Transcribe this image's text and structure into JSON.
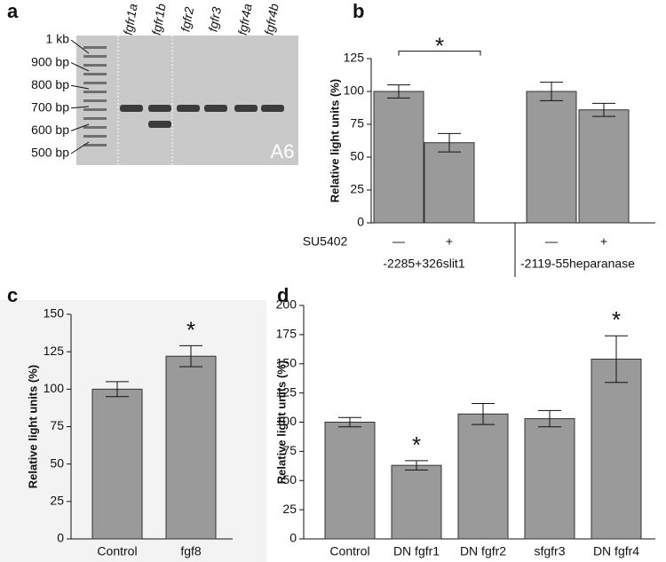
{
  "chart_data": [
    {
      "type": "gel",
      "panel_label": "a",
      "ladder_labels": [
        "1 kb",
        "900 bp",
        "800 bp",
        "700 bp",
        "600 bp",
        "500 bp"
      ],
      "lane_labels": [
        "fgfr1a",
        "fgfr1b",
        "fgfr2",
        "fgfr3",
        "fgfr4a",
        "fgfr4b"
      ],
      "corner_label": "A6"
    },
    {
      "type": "bar",
      "panel_label": "b",
      "ylabel": "Relative light units (%)",
      "categories": [
        "—",
        "+",
        "—",
        "+"
      ],
      "row_label": "SU5402",
      "groups": [
        "-2285+326slit1",
        "-2119-55heparanase"
      ],
      "values": [
        100,
        61,
        100,
        86
      ],
      "errors": [
        5,
        7,
        7,
        5
      ],
      "bracket_label": "*",
      "color": "#9a9a9a",
      "ylim": [
        0,
        125
      ],
      "yticks": [
        0,
        25,
        50,
        75,
        100,
        125
      ]
    },
    {
      "type": "bar",
      "panel_label": "c",
      "ylabel": "Relative light units (%)",
      "categories": [
        "Control",
        "fgf8"
      ],
      "values": [
        100,
        122
      ],
      "errors": [
        5,
        7
      ],
      "annotations": [
        null,
        "*"
      ],
      "color": "#9a9a9a",
      "ylim": [
        0,
        150
      ],
      "yticks": [
        0,
        25,
        50,
        75,
        100,
        125,
        150
      ]
    },
    {
      "type": "bar",
      "panel_label": "d",
      "ylabel": "Relative light units (%)",
      "categories": [
        "Control",
        "DN fgfr1",
        "DN fgfr2",
        "sfgfr3",
        "DN fgfr4"
      ],
      "values": [
        100,
        63,
        107,
        103,
        154
      ],
      "errors": [
        4,
        4,
        9,
        7,
        20
      ],
      "annotations": [
        null,
        "*",
        null,
        null,
        "*"
      ],
      "color": "#9a9a9a",
      "ylim": [
        0,
        200
      ],
      "yticks": [
        0,
        25,
        50,
        75,
        100,
        125,
        150,
        175,
        200
      ]
    }
  ]
}
